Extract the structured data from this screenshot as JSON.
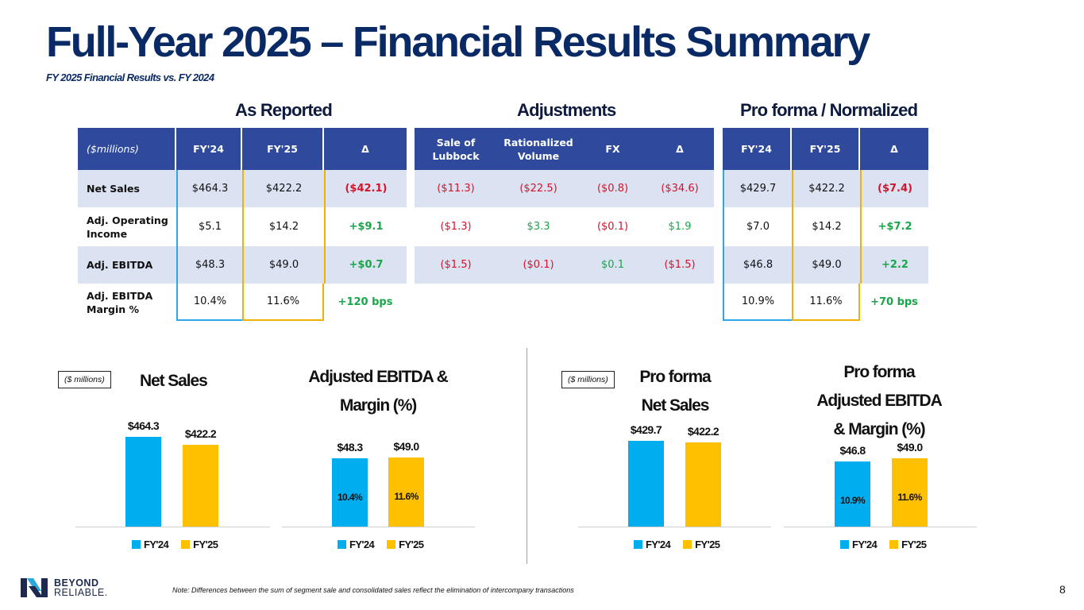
{
  "page": {
    "title": "Full-Year 2025 – Financial Results Summary",
    "subtitle": "FY 2025 Financial Results vs. FY 2024",
    "note": "Note: Differences between the sum of segment sale and consolidated sales reflect the elimination of intercompany transactions",
    "page_number": "8",
    "logo": {
      "line1": "BEYOND",
      "line2": "RELIABLE."
    }
  },
  "sections": {
    "as_reported": "As Reported",
    "adjustments": "Adjustments",
    "pro_forma": "Pro forma / Normalized"
  },
  "as_reported": {
    "headers": [
      "($millions)",
      "FY'24",
      "FY'25",
      "Δ"
    ],
    "rows": [
      {
        "label": "Net Sales",
        "fy24": "$464.3",
        "fy25": "$422.2",
        "delta": "($42.1)"
      },
      {
        "label": "Adj. Operating Income",
        "fy24": "$5.1",
        "fy25": "$14.2",
        "delta": "+$9.1"
      },
      {
        "label": "Adj. EBITDA",
        "fy24": "$48.3",
        "fy25": "$49.0",
        "delta": "+$0.7"
      },
      {
        "label": "Adj. EBITDA Margin %",
        "fy24": "10.4%",
        "fy25": "11.6%",
        "delta": "+120 bps"
      }
    ]
  },
  "adjustments": {
    "headers": [
      "Sale of Lubbock",
      "Rationalized Volume",
      "FX",
      "Δ"
    ],
    "rows": [
      {
        "lubbock": "($11.3)",
        "volume": "($22.5)",
        "fx": "($0.8)",
        "delta": "($34.6)"
      },
      {
        "lubbock": "($1.3)",
        "volume": "$3.3",
        "fx": "($0.1)",
        "delta": "$1.9"
      },
      {
        "lubbock": "($1.5)",
        "volume": "($0.1)",
        "fx": "$0.1",
        "delta": "($1.5)"
      }
    ]
  },
  "pro_forma": {
    "headers": [
      "FY'24",
      "FY'25",
      "Δ"
    ],
    "rows": [
      {
        "fy24": "$429.7",
        "fy25": "$422.2",
        "delta": "($7.4)"
      },
      {
        "fy24": "$7.0",
        "fy25": "$14.2",
        "delta": "+$7.2"
      },
      {
        "fy24": "$46.8",
        "fy25": "$49.0",
        "delta": "+2.2"
      },
      {
        "fy24": "10.9%",
        "fy25": "11.6%",
        "delta": "+70 bps"
      }
    ]
  },
  "chart_data": [
    {
      "type": "bar",
      "title": "Net Sales",
      "unit_label": "($ millions)",
      "categories": [
        "FY'24",
        "FY'25"
      ],
      "values": [
        464.3,
        422.2
      ],
      "labels": [
        "$464.3",
        "$422.2"
      ],
      "legend": [
        "FY'24",
        "FY'25"
      ]
    },
    {
      "type": "bar",
      "title": "Adjusted EBITDA & Margin (%)",
      "categories": [
        "FY'24",
        "FY'25"
      ],
      "values": [
        48.3,
        49.0
      ],
      "labels": [
        "$48.3",
        "$49.0"
      ],
      "margins": [
        "10.4%",
        "11.6%"
      ],
      "legend": [
        "FY'24",
        "FY'25"
      ]
    },
    {
      "type": "bar",
      "title": "Pro forma Net Sales",
      "unit_label": "($ millions)",
      "categories": [
        "FY'24",
        "FY'25"
      ],
      "values": [
        429.7,
        422.2
      ],
      "labels": [
        "$429.7",
        "$422.2"
      ],
      "legend": [
        "FY'24",
        "FY'25"
      ]
    },
    {
      "type": "bar",
      "title": "Pro forma Adjusted EBITDA & Margin (%)",
      "categories": [
        "FY'24",
        "FY'25"
      ],
      "values": [
        46.8,
        49.0
      ],
      "labels": [
        "$46.8",
        "$49.0"
      ],
      "margins": [
        "10.9%",
        "11.6%"
      ],
      "legend": [
        "FY'24",
        "FY'25"
      ]
    }
  ],
  "colors": {
    "fy24": "#00aeef",
    "fy25": "#ffc000",
    "header": "#2f4a9c",
    "title": "#0a2a66"
  }
}
